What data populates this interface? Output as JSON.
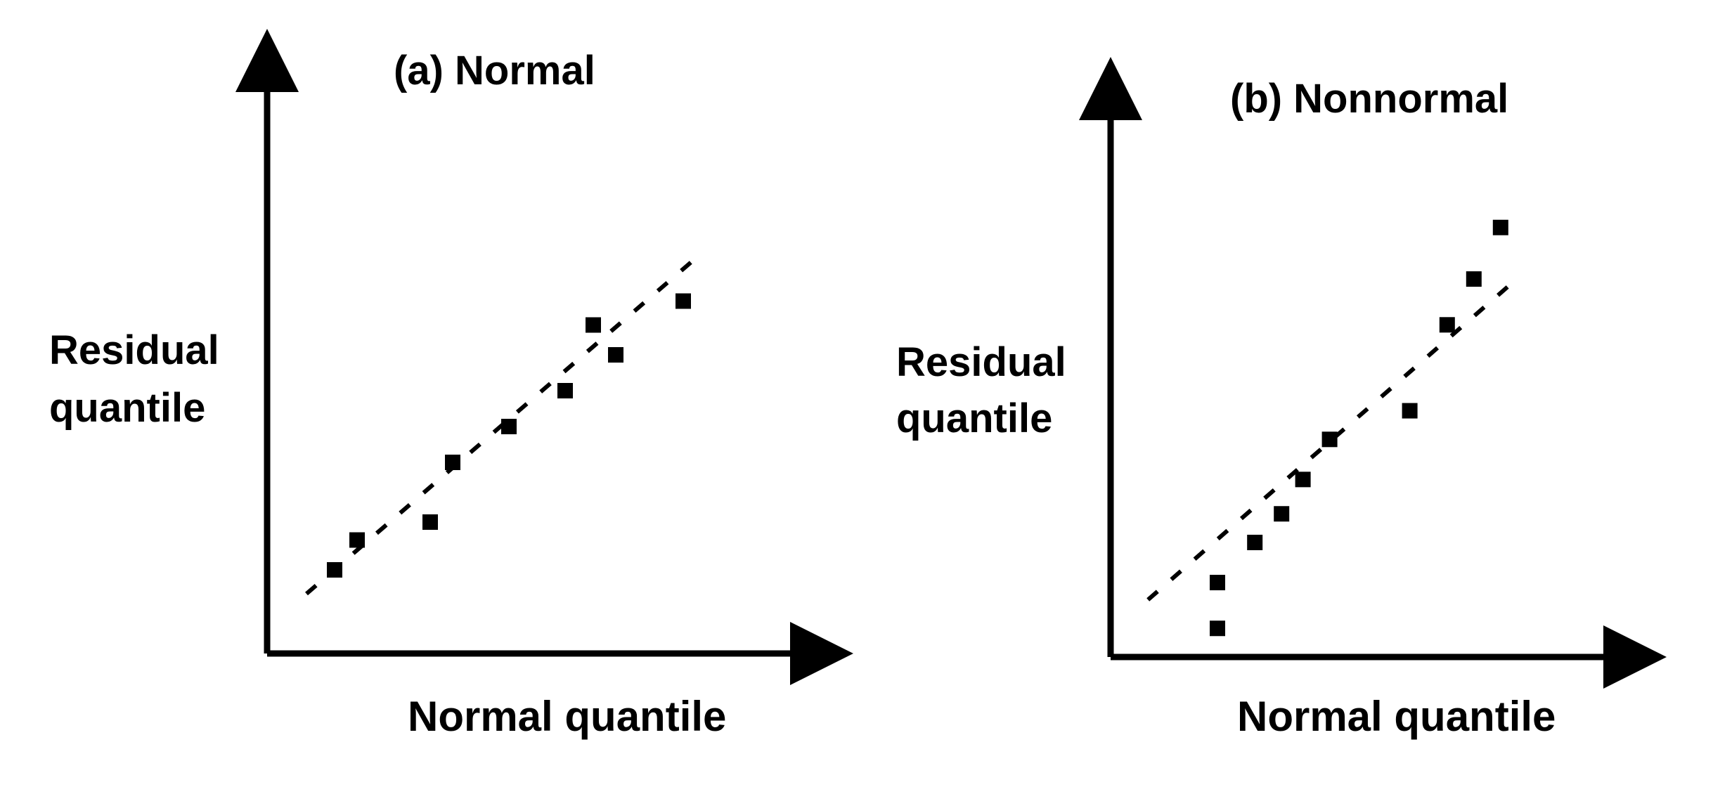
{
  "chart_data": [
    {
      "type": "scatter",
      "title": "(a) Normal",
      "xlabel": "Normal quantile",
      "ylabel": [
        "Residual",
        "quantile"
      ],
      "xlim": [
        0,
        10
      ],
      "ylim": [
        0,
        10
      ],
      "reference_line": {
        "style": "dashed",
        "from": [
          0.7,
          1.0
        ],
        "to": [
          7.6,
          6.6
        ]
      },
      "points": [
        {
          "x": 1.2,
          "y": 1.4
        },
        {
          "x": 1.6,
          "y": 1.9
        },
        {
          "x": 2.9,
          "y": 2.2
        },
        {
          "x": 3.3,
          "y": 3.2
        },
        {
          "x": 4.3,
          "y": 3.8
        },
        {
          "x": 5.3,
          "y": 4.4
        },
        {
          "x": 5.8,
          "y": 5.5
        },
        {
          "x": 6.2,
          "y": 5.0
        },
        {
          "x": 7.4,
          "y": 5.9
        }
      ]
    },
    {
      "type": "scatter",
      "title": "(b) Nonnormal",
      "xlabel": "Normal quantile",
      "ylabel": [
        "Residual",
        "quantile"
      ],
      "xlim": [
        0,
        10
      ],
      "ylim": [
        0,
        10
      ],
      "reference_line": {
        "style": "dashed",
        "from": [
          0.7,
          1.0
        ],
        "to": [
          7.6,
          6.6
        ]
      },
      "points": [
        {
          "x": 2.0,
          "y": 0.5
        },
        {
          "x": 2.0,
          "y": 1.3
        },
        {
          "x": 2.7,
          "y": 2.0
        },
        {
          "x": 3.2,
          "y": 2.5
        },
        {
          "x": 3.6,
          "y": 3.1
        },
        {
          "x": 4.1,
          "y": 3.8
        },
        {
          "x": 5.6,
          "y": 4.3
        },
        {
          "x": 6.3,
          "y": 5.8
        },
        {
          "x": 6.8,
          "y": 6.6
        },
        {
          "x": 7.3,
          "y": 7.5
        }
      ]
    }
  ]
}
